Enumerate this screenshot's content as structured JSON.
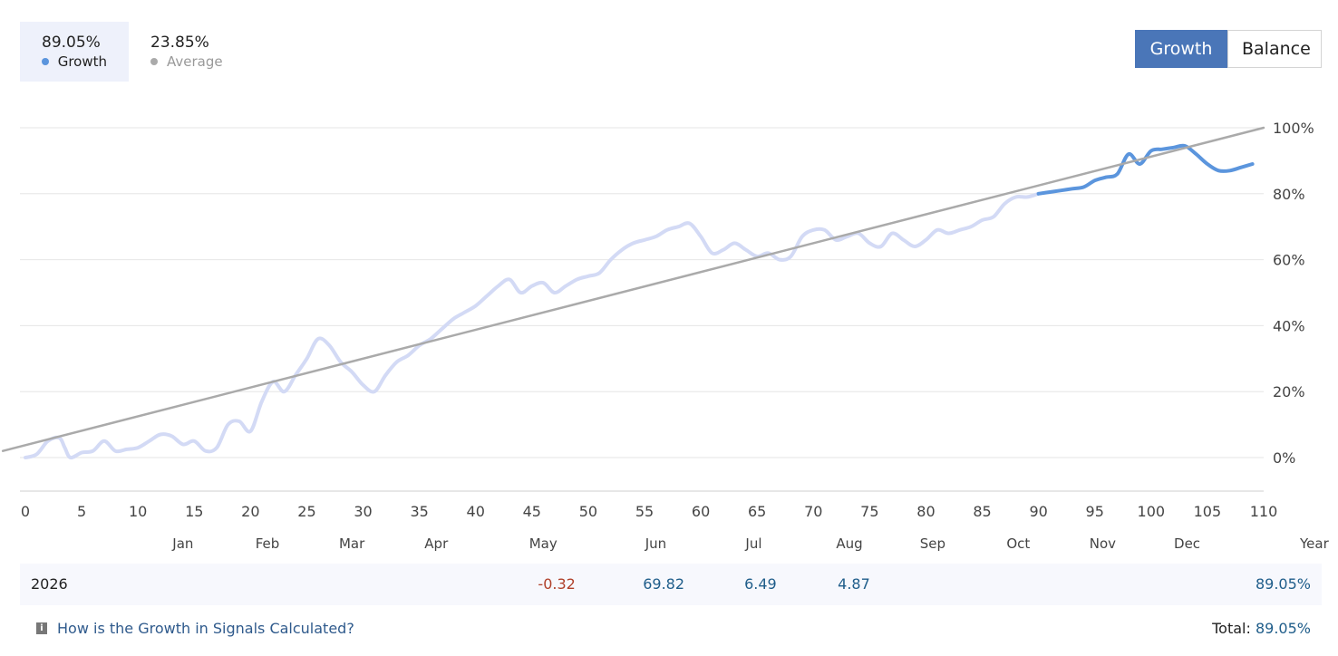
{
  "legend": {
    "growth": {
      "value": "89.05%",
      "label": "Growth",
      "color": "#5b95dd"
    },
    "average": {
      "value": "23.85%",
      "label": "Average",
      "color": "#aaaaaa"
    }
  },
  "toggle": {
    "growth_label": "Growth",
    "balance_label": "Balance"
  },
  "chart_data": {
    "type": "line",
    "title": "",
    "xlabel": "",
    "ylabel": "",
    "xlim": [
      0,
      110
    ],
    "ylim": [
      -10,
      100
    ],
    "x_ticks": [
      0,
      5,
      10,
      15,
      20,
      25,
      30,
      35,
      40,
      45,
      50,
      55,
      60,
      65,
      70,
      75,
      80,
      85,
      90,
      95,
      100,
      105,
      110
    ],
    "y_ticks": [
      0,
      20,
      40,
      60,
      80,
      100
    ],
    "y_tick_labels": [
      "0%",
      "20%",
      "40%",
      "60%",
      "80%",
      "100%"
    ],
    "grid": "horizontal",
    "month_labels": [
      {
        "label": "Jan",
        "x": 14
      },
      {
        "label": "Feb",
        "x": 21.5
      },
      {
        "label": "Mar",
        "x": 29
      },
      {
        "label": "Apr",
        "x": 36.5
      },
      {
        "label": "May",
        "x": 46
      },
      {
        "label": "Jun",
        "x": 56
      },
      {
        "label": "Jul",
        "x": 64.7
      },
      {
        "label": "Aug",
        "x": 73.2
      },
      {
        "label": "Sep",
        "x": 80.6
      },
      {
        "label": "Oct",
        "x": 88.2
      },
      {
        "label": "Nov",
        "x": 95.7
      },
      {
        "label": "Dec",
        "x": 103.2
      },
      {
        "label": "Year",
        "x": 114.5
      }
    ],
    "series": [
      {
        "type": "line",
        "color": "#d3daf5",
        "points": [
          [
            0,
            0
          ],
          [
            1,
            1
          ],
          [
            2,
            5
          ],
          [
            3,
            6
          ],
          [
            3.5,
            3
          ],
          [
            4,
            0
          ],
          [
            5,
            1.5
          ],
          [
            6,
            2
          ],
          [
            7,
            5
          ],
          [
            8,
            2
          ],
          [
            9,
            2.5
          ],
          [
            10,
            3
          ],
          [
            11,
            5
          ],
          [
            12,
            7
          ],
          [
            13,
            6.5
          ],
          [
            14,
            4
          ],
          [
            15,
            5
          ],
          [
            16,
            2
          ],
          [
            17,
            3
          ],
          [
            18,
            10
          ],
          [
            19,
            11
          ],
          [
            20,
            8
          ],
          [
            21,
            17
          ],
          [
            22,
            23
          ],
          [
            23,
            20
          ],
          [
            24,
            25
          ],
          [
            25,
            30
          ],
          [
            26,
            36
          ],
          [
            27,
            34
          ],
          [
            28,
            29
          ],
          [
            29,
            26
          ],
          [
            30,
            22
          ],
          [
            31,
            20
          ],
          [
            32,
            25
          ],
          [
            33,
            29
          ],
          [
            34,
            31
          ],
          [
            35,
            34
          ],
          [
            36,
            36
          ],
          [
            37,
            39
          ],
          [
            38,
            42
          ],
          [
            39,
            44
          ],
          [
            40,
            46
          ],
          [
            41,
            49
          ],
          [
            42,
            52
          ],
          [
            43,
            54
          ],
          [
            44,
            50
          ],
          [
            45,
            52
          ],
          [
            46,
            53
          ],
          [
            47,
            50
          ],
          [
            48,
            52
          ],
          [
            49,
            54
          ],
          [
            50,
            55
          ],
          [
            51,
            56
          ],
          [
            52,
            60
          ],
          [
            53,
            63
          ],
          [
            54,
            65
          ],
          [
            55,
            66
          ],
          [
            56,
            67
          ],
          [
            57,
            69
          ],
          [
            58,
            70
          ],
          [
            59,
            71
          ],
          [
            60,
            67
          ],
          [
            61,
            62
          ],
          [
            62,
            63
          ],
          [
            63,
            65
          ],
          [
            64,
            63
          ],
          [
            65,
            61
          ],
          [
            66,
            62
          ],
          [
            67,
            60
          ],
          [
            68,
            61
          ],
          [
            69,
            67
          ],
          [
            70,
            69
          ],
          [
            71,
            69
          ],
          [
            72,
            66
          ],
          [
            73,
            67
          ],
          [
            74,
            68
          ],
          [
            75,
            65
          ],
          [
            76,
            64
          ],
          [
            77,
            68
          ],
          [
            78,
            66
          ],
          [
            79,
            64
          ],
          [
            80,
            66
          ],
          [
            81,
            69
          ],
          [
            82,
            68
          ],
          [
            83,
            69
          ],
          [
            84,
            70
          ],
          [
            85,
            72
          ],
          [
            86,
            73
          ],
          [
            87,
            77
          ],
          [
            88,
            79
          ],
          [
            89,
            79
          ],
          [
            90,
            80
          ]
        ]
      },
      {
        "type": "line",
        "color": "#5b95dd",
        "points": [
          [
            90,
            80
          ],
          [
            91,
            80.5
          ],
          [
            92,
            81
          ],
          [
            93,
            81.5
          ],
          [
            94,
            82
          ],
          [
            95,
            84
          ],
          [
            96,
            85
          ],
          [
            97,
            86
          ],
          [
            98,
            92
          ],
          [
            99,
            89
          ],
          [
            100,
            93
          ],
          [
            101,
            93.5
          ],
          [
            102,
            94
          ],
          [
            103,
            94.5
          ],
          [
            104,
            92
          ],
          [
            105,
            89
          ],
          [
            106,
            87
          ],
          [
            107,
            87
          ],
          [
            108,
            88
          ],
          [
            109,
            89
          ]
        ]
      },
      {
        "type": "line",
        "color": "#aaaaaa",
        "points": [
          [
            -2,
            2
          ],
          [
            110,
            100
          ]
        ]
      }
    ]
  },
  "summary": {
    "year": "2026",
    "months": [
      {
        "value": "-0.32",
        "x": 47.2,
        "sign": "neg"
      },
      {
        "value": "69.82",
        "x": 56.7,
        "sign": "pos"
      },
      {
        "value": "6.49",
        "x": 65.3,
        "sign": "pos"
      },
      {
        "value": "4.87",
        "x": 73.6,
        "sign": "pos"
      }
    ],
    "total": "89.05%"
  },
  "footer": {
    "info_icon": "info-icon",
    "help_link": "How is the Growth in Signals Calculated?",
    "total_label": "Total:",
    "total_value": "89.05%"
  }
}
